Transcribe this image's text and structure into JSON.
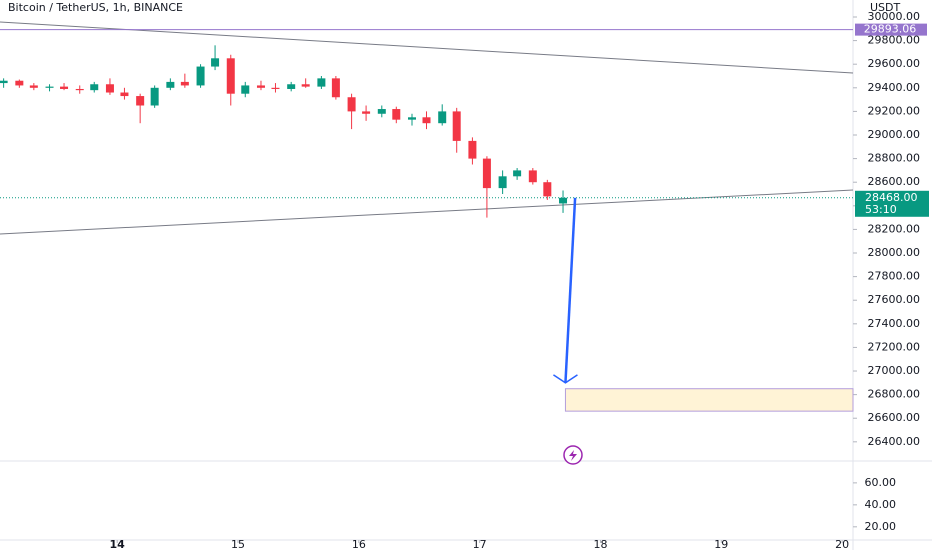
{
  "chart_data": {
    "type": "candlestick",
    "title": "Bitcoin / TetherUS, 1h, BINANCE",
    "currency": "USDT",
    "up_color": "#089981",
    "down_color": "#f23645",
    "x": [
      13.06,
      13.19,
      13.31,
      13.44,
      13.56,
      13.69,
      13.81,
      13.94,
      14.06,
      14.19,
      14.31,
      14.44,
      14.56,
      14.69,
      14.81,
      14.94,
      15.06,
      15.19,
      15.31,
      15.44,
      15.56,
      15.69,
      15.81,
      15.94,
      16.06,
      16.19,
      16.31,
      16.44,
      16.56,
      16.69,
      16.81,
      16.94,
      17.06,
      17.19,
      17.31,
      17.44,
      17.56,
      17.69
    ],
    "open": [
      29440,
      29460,
      29420,
      29400,
      29410,
      29390,
      29380,
      29430,
      29360,
      29330,
      29250,
      29400,
      29450,
      29420,
      29580,
      29650,
      29350,
      29420,
      29400,
      29390,
      29430,
      29410,
      29480,
      29320,
      29200,
      29180,
      29220,
      29130,
      29150,
      29100,
      29200,
      28950,
      28800,
      28550,
      28650,
      28700,
      28600,
      28420
    ],
    "high": [
      29480,
      29470,
      29440,
      29430,
      29440,
      29420,
      29450,
      29480,
      29400,
      29350,
      29420,
      29480,
      29520,
      29600,
      29760,
      29680,
      29450,
      29460,
      29440,
      29450,
      29480,
      29500,
      29500,
      29350,
      29250,
      29250,
      29240,
      29180,
      29200,
      29260,
      29230,
      28980,
      28820,
      28700,
      28720,
      28720,
      28620,
      28530
    ],
    "low": [
      29400,
      29400,
      29380,
      29370,
      29380,
      29350,
      29360,
      29340,
      29300,
      29100,
      29230,
      29380,
      29400,
      29400,
      29550,
      29250,
      29320,
      29380,
      29360,
      29370,
      29400,
      29390,
      29300,
      29050,
      29120,
      29150,
      29100,
      29080,
      29050,
      29080,
      28850,
      28750,
      28300,
      28500,
      28620,
      28580,
      28450,
      28340
    ],
    "close": [
      29460,
      29420,
      29400,
      29410,
      29390,
      29380,
      29430,
      29360,
      29330,
      29250,
      29400,
      29450,
      29420,
      29580,
      29650,
      29350,
      29420,
      29400,
      29390,
      29430,
      29410,
      29480,
      29320,
      29200,
      29180,
      29220,
      29130,
      29150,
      29100,
      29200,
      28950,
      28800,
      28550,
      28650,
      28700,
      28600,
      28480,
      28468
    ],
    "xlim": [
      13.03,
      20.09
    ],
    "xticks": [
      14,
      15,
      16,
      17,
      18,
      19,
      20
    ],
    "ylim": [
      26246,
      30144
    ],
    "yticks": [
      {
        "value": 30000,
        "label": "30000.00"
      },
      {
        "value": 29800,
        "label": "29800.00"
      },
      {
        "value": 29600,
        "label": "29600.00"
      },
      {
        "value": 29400,
        "label": "29400.00"
      },
      {
        "value": 29200,
        "label": "29200.00"
      },
      {
        "value": 29000,
        "label": "29000.00"
      },
      {
        "value": 28800,
        "label": "28800.00"
      },
      {
        "value": 28600,
        "label": "28600.00"
      },
      {
        "value": 28400,
        "label": "28400.00"
      },
      {
        "value": 28200,
        "label": "28200.00"
      },
      {
        "value": 28000,
        "label": "28000.00"
      },
      {
        "value": 27800,
        "label": "27800.00"
      },
      {
        "value": 27600,
        "label": "27600.00"
      },
      {
        "value": 27400,
        "label": "27400.00"
      },
      {
        "value": 27200,
        "label": "27200.00"
      },
      {
        "value": 27000,
        "label": "27000.00"
      },
      {
        "value": 26800,
        "label": "26800.00"
      },
      {
        "value": 26600,
        "label": "26600.00"
      },
      {
        "value": 26400,
        "label": "26400.00"
      }
    ],
    "last_price": {
      "value": 28468,
      "label": "28468.00"
    },
    "countdown": "53:10",
    "level": {
      "value": 29893.06,
      "color": "#9575cd"
    },
    "trendlines": [
      {
        "x": [
          13.03,
          20.09
        ],
        "y": [
          29958,
          29525
        ]
      },
      {
        "x": [
          13.03,
          20.09
        ],
        "y": [
          28161,
          28534
        ]
      }
    ],
    "arrow": {
      "x": [
        17.79,
        17.71
      ],
      "y": [
        28468,
        26900
      ],
      "color": "#2962ff"
    },
    "zone": {
      "x": [
        17.71,
        20.09
      ],
      "y": [
        26850,
        26660
      ]
    },
    "pane2_ylim": [
      8,
      79
    ],
    "pane2_yticks": [
      {
        "value": 60,
        "label": "60.00"
      },
      {
        "value": 40,
        "label": "40.00"
      },
      {
        "value": 20,
        "label": "20.00"
      }
    ]
  }
}
